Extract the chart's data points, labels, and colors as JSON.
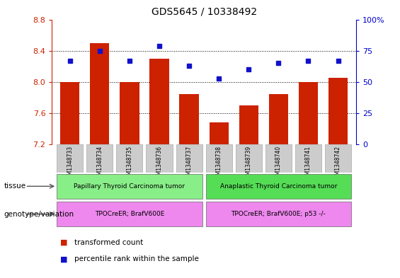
{
  "title": "GDS5645 / 10338492",
  "samples": [
    "GSM1348733",
    "GSM1348734",
    "GSM1348735",
    "GSM1348736",
    "GSM1348737",
    "GSM1348738",
    "GSM1348739",
    "GSM1348740",
    "GSM1348741",
    "GSM1348742"
  ],
  "bar_values": [
    8.0,
    8.5,
    8.0,
    8.3,
    7.85,
    7.48,
    7.7,
    7.85,
    8.0,
    8.05
  ],
  "dot_values": [
    67,
    75,
    67,
    79,
    63,
    53,
    60,
    65,
    67,
    67
  ],
  "ylim_left": [
    7.2,
    8.8
  ],
  "ylim_right": [
    0,
    100
  ],
  "yticks_left": [
    7.2,
    7.6,
    8.0,
    8.4,
    8.8
  ],
  "yticks_right": [
    0,
    25,
    50,
    75,
    100
  ],
  "bar_color": "#cc2200",
  "dot_color": "#1111cc",
  "tissue_group1": "Papillary Thyroid Carcinoma tumor",
  "tissue_group2": "Anaplastic Thyroid Carcinoma tumor",
  "tissue_color1": "#88ee88",
  "tissue_color2": "#55dd55",
  "genotype_group1": "TPOCreER; BrafV600E",
  "genotype_group2": "TPOCreER; BrafV600E; p53 -/-",
  "genotype_color": "#ee88ee",
  "group1_count": 5,
  "group2_count": 5,
  "tick_color_left": "#cc2200",
  "tick_color_right": "#0000cc",
  "bg_color": "#ffffff",
  "sample_bg": "#cccccc",
  "legend_items": [
    "transformed count",
    "percentile rank within the sample"
  ],
  "legend_colors": [
    "#cc2200",
    "#1111cc"
  ],
  "grid_yticks": [
    7.6,
    8.0,
    8.4
  ]
}
